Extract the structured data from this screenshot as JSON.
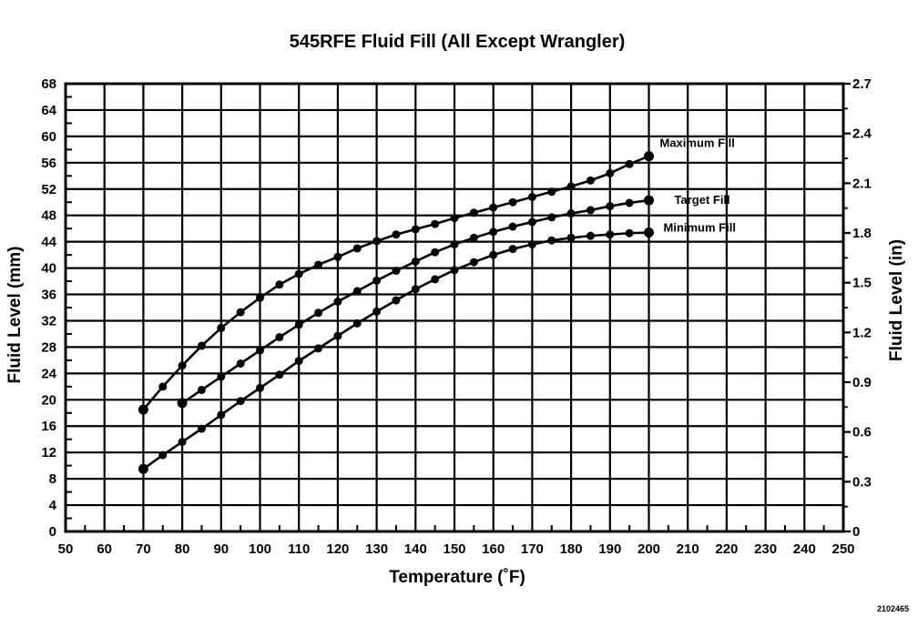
{
  "chart_data": {
    "type": "line",
    "title": "545RFE Fluid Fill (All Except Wrangler)",
    "xlabel": "Temperature (˚F)",
    "ylabel": "Fluid Level (mm)",
    "y2label": "Fluid Level (in)",
    "xlim": [
      50,
      250
    ],
    "ylim": [
      0,
      68
    ],
    "y2lim": [
      0,
      2.7
    ],
    "x_ticks": [
      "50",
      "60",
      "70",
      "80",
      "90",
      "100",
      "110",
      "120",
      "130",
      "140",
      "150",
      "160",
      "170",
      "180",
      "190",
      "200",
      "210",
      "220",
      "230",
      "240",
      "250"
    ],
    "y_ticks": [
      "0",
      "4",
      "8",
      "12",
      "16",
      "20",
      "24",
      "28",
      "32",
      "36",
      "40",
      "44",
      "48",
      "52",
      "56",
      "60",
      "64",
      "68"
    ],
    "y2_ticks": [
      "0",
      "0.3",
      "0.6",
      "0.9",
      "1.2",
      "1.5",
      "1.8",
      "2.1",
      "2.4",
      "2.7"
    ],
    "grid": true,
    "series": [
      {
        "name": "Maximum Fill",
        "x": [
          70,
          75,
          80,
          85,
          90,
          95,
          100,
          105,
          110,
          115,
          120,
          125,
          130,
          135,
          140,
          145,
          150,
          155,
          160,
          165,
          170,
          175,
          180,
          185,
          190,
          195,
          200
        ],
        "y": [
          18.5,
          22,
          25.2,
          28.2,
          30.9,
          33.3,
          35.5,
          37.5,
          39.1,
          40.5,
          41.7,
          43,
          44.1,
          45.1,
          45.9,
          46.7,
          47.6,
          48.4,
          49.2,
          50,
          50.8,
          51.6,
          52.4,
          53.3,
          54.4,
          55.8,
          57
        ]
      },
      {
        "name": "Target Fill",
        "x": [
          80,
          85,
          90,
          95,
          100,
          105,
          110,
          115,
          120,
          125,
          130,
          135,
          140,
          145,
          150,
          155,
          160,
          165,
          170,
          175,
          180,
          185,
          190,
          195,
          200
        ],
        "y": [
          19.5,
          21.5,
          23.5,
          25.5,
          27.5,
          29.5,
          31.4,
          33.2,
          34.9,
          36.5,
          38.1,
          39.6,
          41,
          42.4,
          43.6,
          44.6,
          45.5,
          46.3,
          47,
          47.7,
          48.3,
          48.8,
          49.4,
          49.9,
          50.3
        ]
      },
      {
        "name": "Minimum Fill",
        "x": [
          70,
          75,
          80,
          85,
          90,
          95,
          100,
          105,
          110,
          115,
          120,
          125,
          130,
          135,
          140,
          145,
          150,
          155,
          160,
          165,
          170,
          175,
          180,
          185,
          190,
          195,
          200
        ],
        "y": [
          9.5,
          11.6,
          13.6,
          15.6,
          17.7,
          19.8,
          21.8,
          23.8,
          25.9,
          27.8,
          29.7,
          31.6,
          33.4,
          35.1,
          36.8,
          38.3,
          39.7,
          40.9,
          42,
          42.9,
          43.6,
          44.2,
          44.6,
          44.9,
          45.1,
          45.3,
          45.4
        ]
      }
    ]
  },
  "figure_id": "2102465"
}
